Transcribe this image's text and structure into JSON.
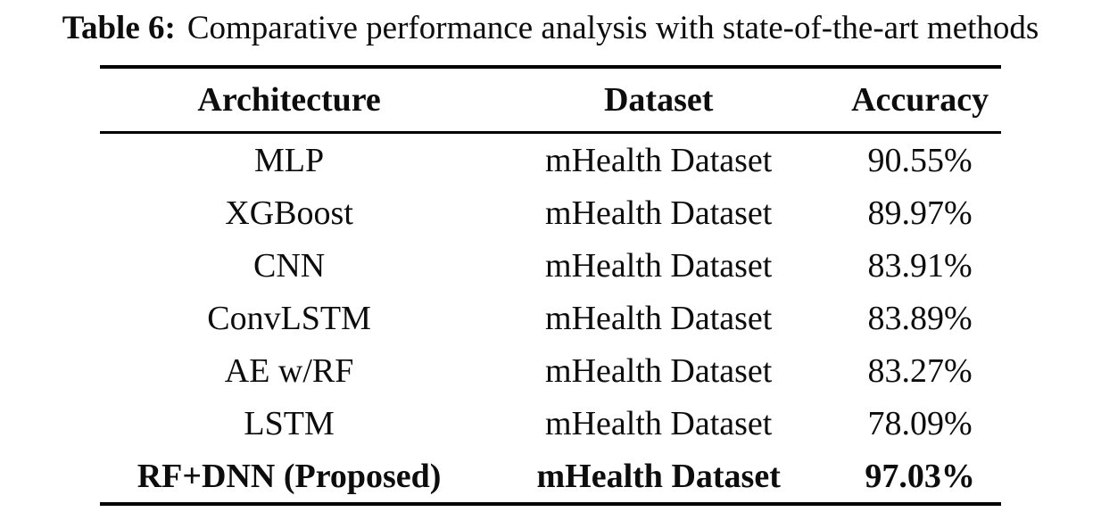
{
  "caption": {
    "label": "Table 6:",
    "text": "Comparative performance analysis with state-of-the-art methods"
  },
  "table": {
    "headers": {
      "architecture": "Architecture",
      "dataset": "Dataset",
      "accuracy": "Accuracy"
    },
    "rows": [
      {
        "architecture": "MLP",
        "dataset": "mHealth Dataset",
        "accuracy": "90.55%"
      },
      {
        "architecture": "XGBoost",
        "dataset": "mHealth Dataset",
        "accuracy": "89.97%"
      },
      {
        "architecture": "CNN",
        "dataset": "mHealth Dataset",
        "accuracy": "83.91%"
      },
      {
        "architecture": "ConvLSTM",
        "dataset": "mHealth Dataset",
        "accuracy": "83.89%"
      },
      {
        "architecture": "AE w/RF",
        "dataset": "mHealth Dataset",
        "accuracy": "83.27%"
      },
      {
        "architecture": "LSTM",
        "dataset": "mHealth Dataset",
        "accuracy": "78.09%"
      },
      {
        "architecture": "RF+DNN (Proposed)",
        "dataset": "mHealth Dataset",
        "accuracy": "97.03%"
      }
    ]
  },
  "colors": {
    "text": "#0d0d0d",
    "background": "#ffffff",
    "rule": "#000000"
  }
}
